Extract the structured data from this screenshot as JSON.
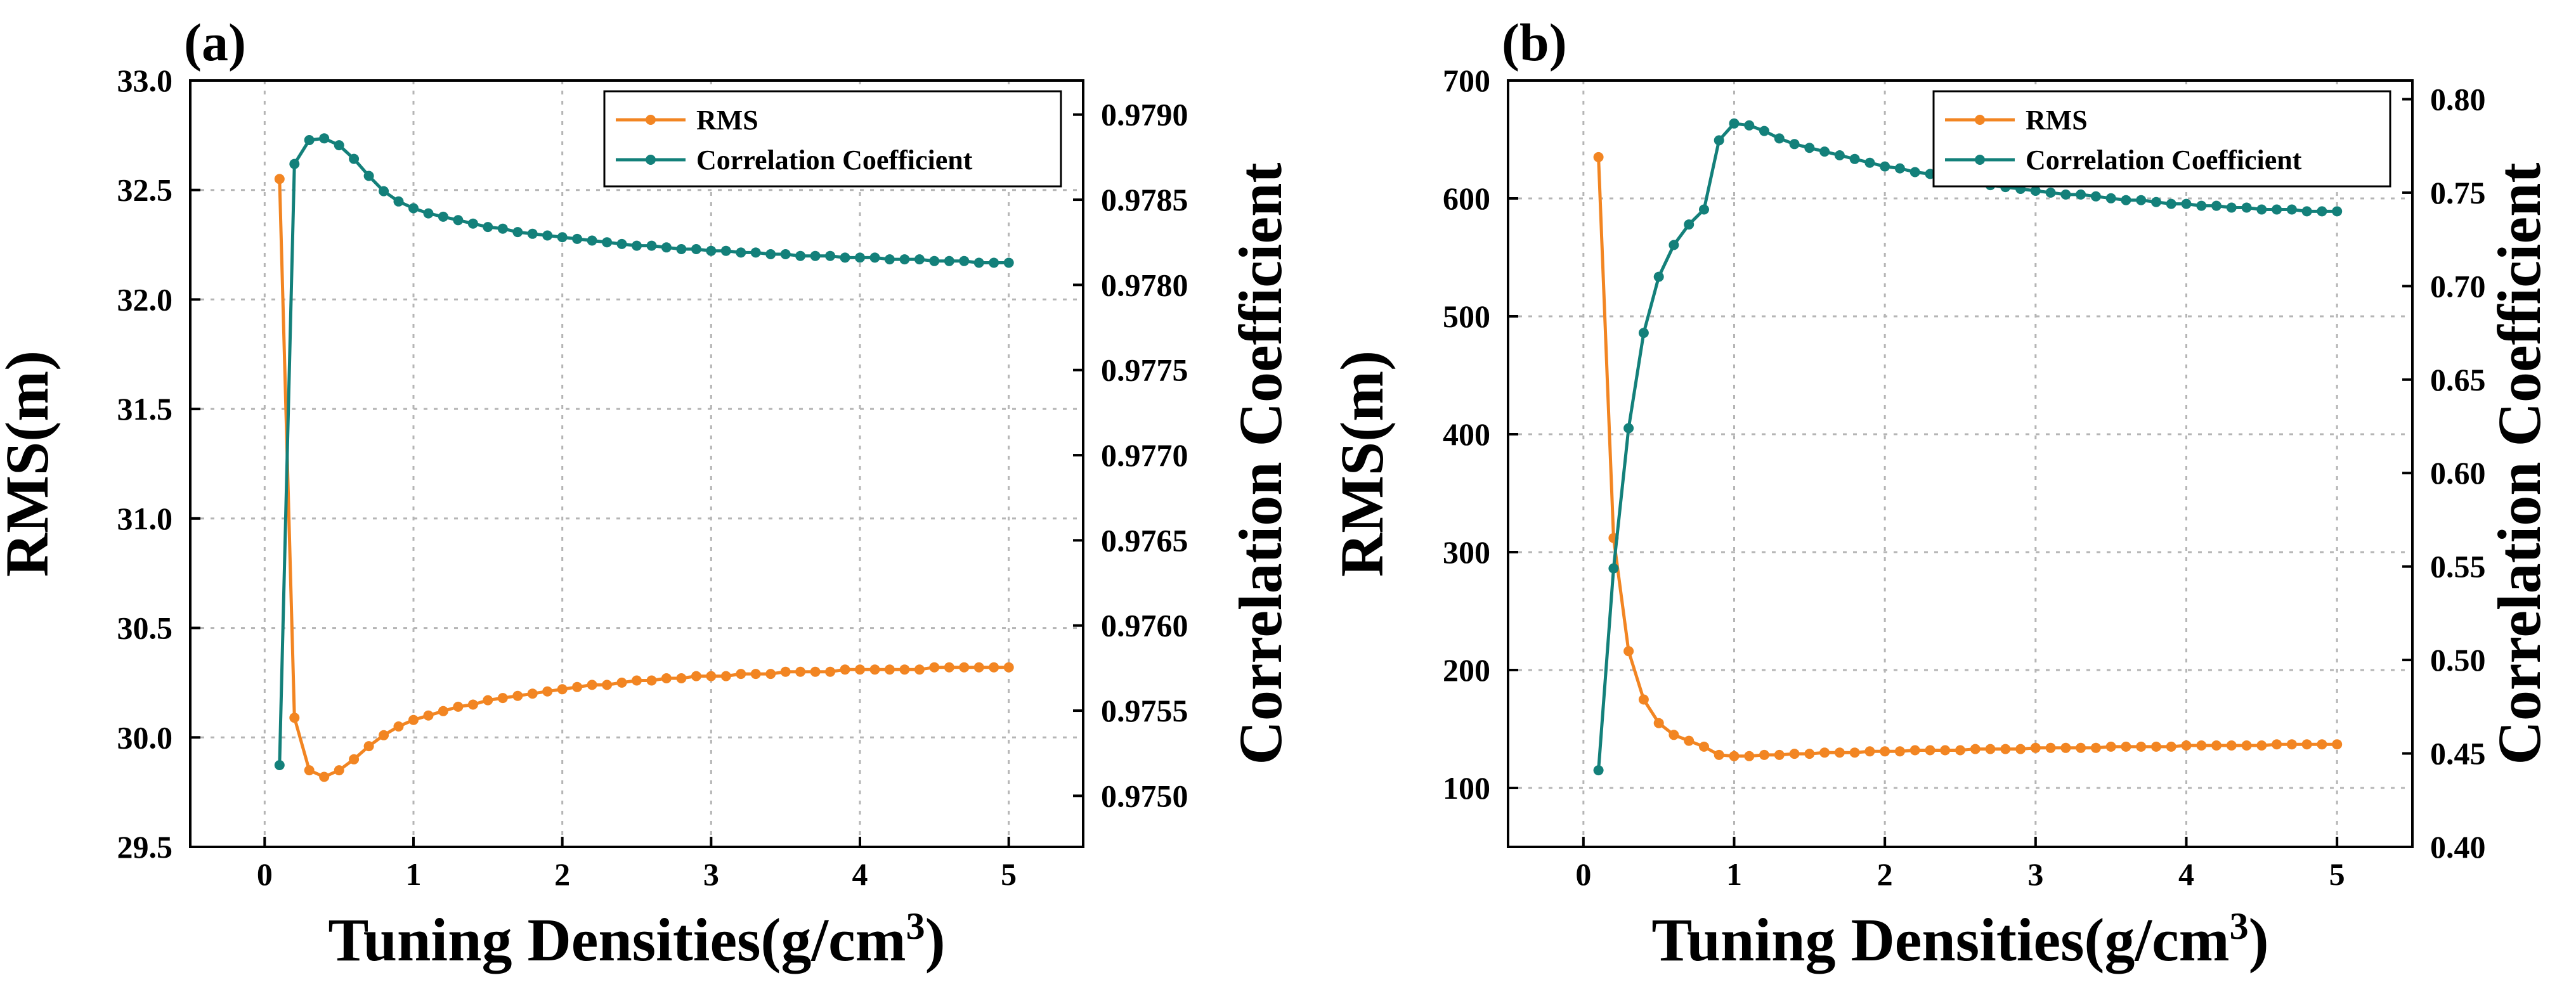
{
  "chart_data": [
    {
      "type": "line",
      "panel_label": "(a)",
      "xlabel": "Tuning Densities(g/cm",
      "xlabel_sup": "3",
      "xlabel_close": ")",
      "ylabel_left": "RMS(m)",
      "ylabel_right": "Correlation Coefficient",
      "xlim": [
        -0.5,
        5.5
      ],
      "ylim_left": [
        29.5,
        33.0
      ],
      "ylim_right": [
        0.9747,
        0.9792
      ],
      "x_ticks": [
        0,
        1,
        2,
        3,
        4,
        5
      ],
      "x_tick_labels": [
        "0",
        "1",
        "2",
        "3",
        "4",
        "5"
      ],
      "y_left_ticks": [
        29.5,
        30.0,
        30.5,
        31.0,
        31.5,
        32.0,
        32.5,
        33.0
      ],
      "y_left_tick_labels": [
        "29.5",
        "30.0",
        "30.5",
        "31.0",
        "31.5",
        "32.0",
        "32.5",
        "33.0"
      ],
      "y_right_ticks": [
        0.975,
        0.9755,
        0.976,
        0.9765,
        0.977,
        0.9775,
        0.978,
        0.9785,
        0.979
      ],
      "y_right_tick_labels": [
        "0.9750",
        "0.9755",
        "0.9760",
        "0.9765",
        "0.9770",
        "0.9775",
        "0.9780",
        "0.9785",
        "0.9790"
      ],
      "grid": true,
      "legend_position": "top-right",
      "x": [
        0.1,
        0.2,
        0.3,
        0.4,
        0.5,
        0.6,
        0.7,
        0.8,
        0.9,
        1.0,
        1.1,
        1.2,
        1.3,
        1.4,
        1.5,
        1.6,
        1.7,
        1.8,
        1.9,
        2.0,
        2.1,
        2.2,
        2.3,
        2.4,
        2.5,
        2.6,
        2.7,
        2.8,
        2.9,
        3.0,
        3.1,
        3.2,
        3.3,
        3.4,
        3.5,
        3.6,
        3.7,
        3.8,
        3.9,
        4.0,
        4.1,
        4.2,
        4.3,
        4.4,
        4.5,
        4.6,
        4.7,
        4.8,
        4.9,
        5.0
      ],
      "series": [
        {
          "name": "RMS",
          "axis": "left",
          "color": "#f28522",
          "values": [
            32.55,
            30.09,
            29.85,
            29.82,
            29.85,
            29.9,
            29.96,
            30.01,
            30.05,
            30.08,
            30.1,
            30.12,
            30.14,
            30.15,
            30.17,
            30.18,
            30.19,
            30.2,
            30.21,
            30.22,
            30.23,
            30.24,
            30.24,
            30.25,
            30.26,
            30.26,
            30.27,
            30.27,
            30.28,
            30.28,
            30.28,
            30.29,
            30.29,
            30.29,
            30.3,
            30.3,
            30.3,
            30.3,
            30.31,
            30.31,
            30.31,
            30.31,
            30.31,
            30.31,
            30.32,
            30.32,
            30.32,
            30.32,
            30.32,
            30.32
          ]
        },
        {
          "name": "Correlation Coefficient",
          "axis": "right",
          "color": "#13807a",
          "values": [
            0.97518,
            0.97871,
            0.97885,
            0.97886,
            0.97882,
            0.97874,
            0.97864,
            0.97855,
            0.97849,
            0.97845,
            0.97842,
            0.9784,
            0.97838,
            0.97836,
            0.97834,
            0.97833,
            0.97831,
            0.9783,
            0.97829,
            0.97828,
            0.97827,
            0.97826,
            0.97825,
            0.97824,
            0.97823,
            0.97823,
            0.97822,
            0.97821,
            0.97821,
            0.9782,
            0.9782,
            0.97819,
            0.97819,
            0.97818,
            0.97818,
            0.97817,
            0.97817,
            0.97817,
            0.97816,
            0.97816,
            0.97816,
            0.97815,
            0.97815,
            0.97815,
            0.97814,
            0.97814,
            0.97814,
            0.97813,
            0.97813,
            0.97813
          ]
        }
      ]
    },
    {
      "type": "line",
      "panel_label": "(b)",
      "xlabel": "Tuning Densities(g/cm",
      "xlabel_sup": "3",
      "xlabel_close": ")",
      "ylabel_left": "RMS(m)",
      "ylabel_right": "Correlation Coefficient",
      "xlim": [
        -0.5,
        5.5
      ],
      "ylim_left": [
        50,
        700
      ],
      "ylim_right": [
        0.4,
        0.81
      ],
      "x_ticks": [
        0,
        1,
        2,
        3,
        4,
        5
      ],
      "x_tick_labels": [
        "0",
        "1",
        "2",
        "3",
        "4",
        "5"
      ],
      "y_left_ticks": [
        100,
        200,
        300,
        400,
        500,
        600,
        700
      ],
      "y_left_tick_labels": [
        "100",
        "200",
        "300",
        "400",
        "500",
        "600",
        "700"
      ],
      "y_right_ticks": [
        0.4,
        0.45,
        0.5,
        0.55,
        0.6,
        0.65,
        0.7,
        0.75,
        0.8
      ],
      "y_right_tick_labels": [
        "0.40",
        "0.45",
        "0.50",
        "0.55",
        "0.60",
        "0.65",
        "0.70",
        "0.75",
        "0.80"
      ],
      "grid": true,
      "legend_position": "top-right",
      "x": [
        0.1,
        0.2,
        0.3,
        0.4,
        0.5,
        0.6,
        0.7,
        0.8,
        0.9,
        1.0,
        1.1,
        1.2,
        1.3,
        1.4,
        1.5,
        1.6,
        1.7,
        1.8,
        1.9,
        2.0,
        2.1,
        2.2,
        2.3,
        2.4,
        2.5,
        2.6,
        2.7,
        2.8,
        2.9,
        3.0,
        3.1,
        3.2,
        3.3,
        3.4,
        3.5,
        3.6,
        3.7,
        3.8,
        3.9,
        4.0,
        4.1,
        4.2,
        4.3,
        4.4,
        4.5,
        4.6,
        4.7,
        4.8,
        4.9,
        5.0
      ],
      "series": [
        {
          "name": "RMS",
          "axis": "left",
          "color": "#f28522",
          "values": [
            635,
            312,
            216,
            175,
            155,
            145,
            140,
            135,
            128,
            127,
            127,
            128,
            128,
            129,
            129,
            130,
            130,
            130,
            131,
            131,
            131,
            132,
            132,
            132,
            132,
            133,
            133,
            133,
            133,
            134,
            134,
            134,
            134,
            134,
            135,
            135,
            135,
            135,
            135,
            136,
            136,
            136,
            136,
            136,
            136,
            137,
            137,
            137,
            137,
            137
          ]
        },
        {
          "name": "Correlation Coefficient",
          "axis": "right",
          "color": "#13807a",
          "values": [
            0.441,
            0.549,
            0.624,
            0.675,
            0.705,
            0.722,
            0.733,
            0.741,
            0.778,
            0.787,
            0.786,
            0.783,
            0.779,
            0.776,
            0.774,
            0.772,
            0.77,
            0.768,
            0.766,
            0.764,
            0.763,
            0.761,
            0.76,
            0.758,
            0.757,
            0.756,
            0.754,
            0.753,
            0.752,
            0.751,
            0.75,
            0.749,
            0.749,
            0.748,
            0.747,
            0.746,
            0.746,
            0.745,
            0.744,
            0.744,
            0.743,
            0.743,
            0.742,
            0.742,
            0.741,
            0.741,
            0.741,
            0.74,
            0.74,
            0.74
          ]
        }
      ]
    }
  ]
}
